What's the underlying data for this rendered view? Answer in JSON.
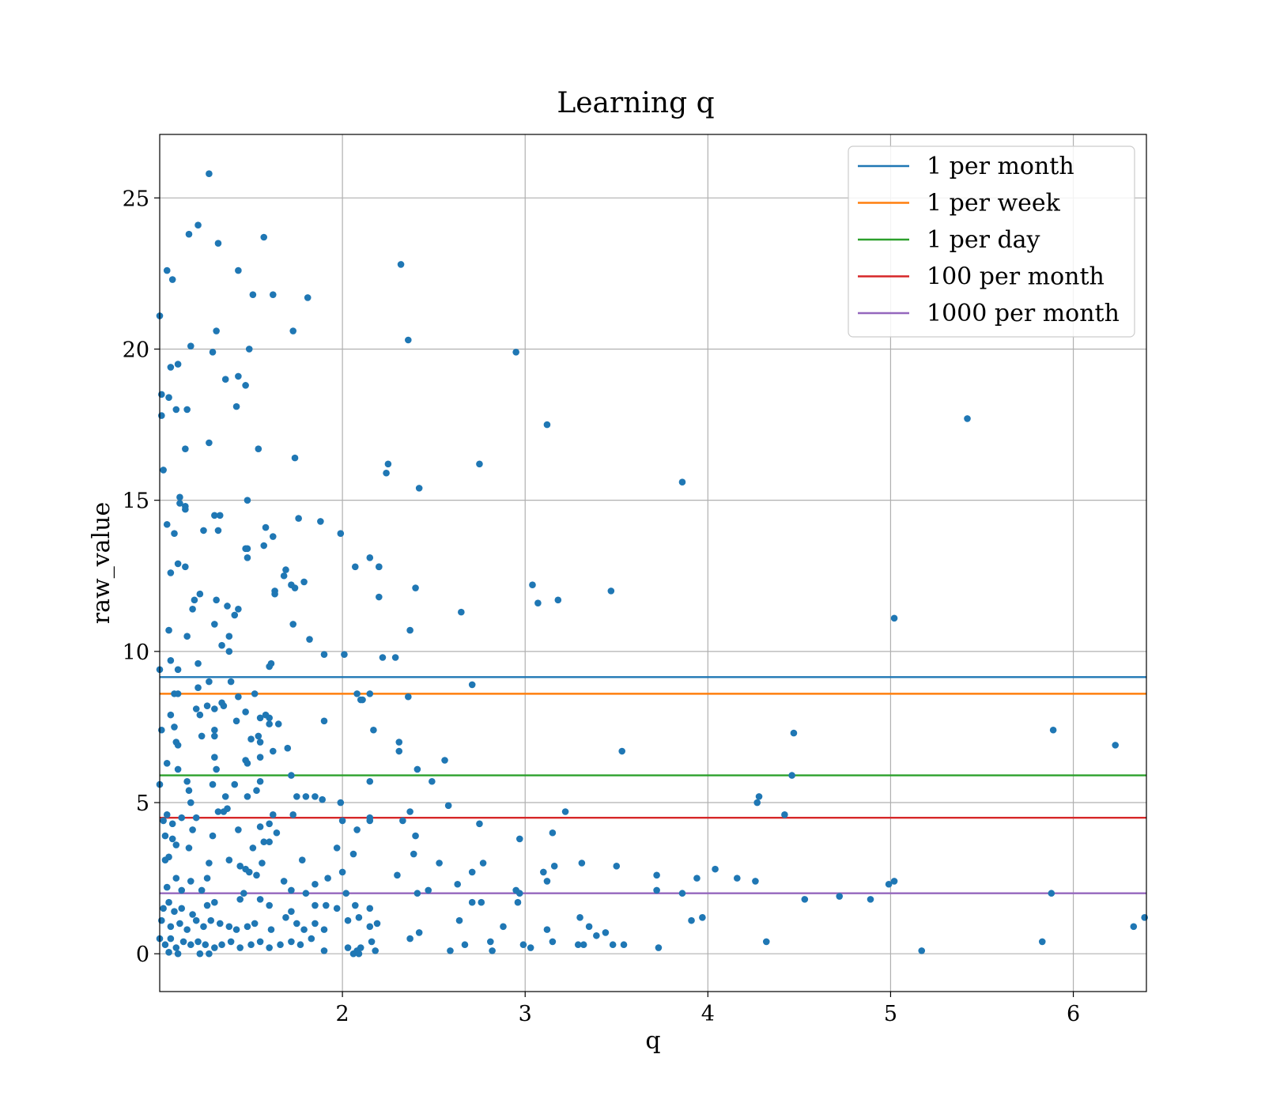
{
  "chart_data": {
    "type": "scatter",
    "title": "Learning q",
    "xlabel": "q",
    "ylabel": "raw_value",
    "xlim": [
      1.0,
      6.4
    ],
    "ylim": [
      -1.25,
      27.1
    ],
    "xticks": [
      2,
      3,
      4,
      5,
      6
    ],
    "yticks": [
      0,
      5,
      10,
      15,
      20,
      25
    ],
    "grid": true,
    "legend_position": "top-right",
    "point_color": "#1f77b4",
    "points": [
      [
        1.27,
        25.8
      ],
      [
        1.21,
        24.1
      ],
      [
        1.16,
        23.8
      ],
      [
        1.32,
        23.5
      ],
      [
        1.57,
        23.7
      ],
      [
        1.04,
        22.6
      ],
      [
        1.07,
        22.3
      ],
      [
        1.43,
        22.6
      ],
      [
        1.51,
        21.8
      ],
      [
        1.62,
        21.8
      ],
      [
        1.81,
        21.7
      ],
      [
        2.32,
        22.8
      ],
      [
        1.0,
        21.1
      ],
      [
        1.17,
        20.1
      ],
      [
        1.29,
        19.9
      ],
      [
        1.31,
        20.6
      ],
      [
        1.49,
        20.0
      ],
      [
        1.73,
        20.6
      ],
      [
        2.36,
        20.3
      ],
      [
        2.95,
        19.9
      ],
      [
        1.06,
        19.4
      ],
      [
        1.1,
        19.5
      ],
      [
        1.36,
        19.0
      ],
      [
        1.43,
        19.1
      ],
      [
        1.47,
        18.8
      ],
      [
        1.01,
        18.5
      ],
      [
        1.05,
        18.4
      ],
      [
        1.09,
        18.0
      ],
      [
        1.42,
        18.1
      ],
      [
        1.01,
        17.8
      ],
      [
        1.15,
        18.0
      ],
      [
        3.12,
        17.5
      ],
      [
        5.42,
        17.7
      ],
      [
        1.27,
        16.9
      ],
      [
        1.14,
        16.7
      ],
      [
        1.54,
        16.7
      ],
      [
        1.74,
        16.4
      ],
      [
        1.02,
        16.0
      ],
      [
        2.24,
        15.9
      ],
      [
        2.25,
        16.2
      ],
      [
        2.75,
        16.2
      ],
      [
        2.42,
        15.4
      ],
      [
        3.86,
        15.6
      ],
      [
        1.11,
        15.1
      ],
      [
        1.48,
        15.0
      ],
      [
        1.11,
        14.9
      ],
      [
        1.14,
        14.8
      ],
      [
        1.14,
        14.7
      ],
      [
        1.3,
        14.5
      ],
      [
        1.33,
        14.5
      ],
      [
        1.04,
        14.2
      ],
      [
        1.32,
        14.0
      ],
      [
        1.24,
        14.0
      ],
      [
        1.58,
        14.1
      ],
      [
        1.08,
        13.9
      ],
      [
        1.62,
        13.8
      ],
      [
        1.99,
        13.9
      ],
      [
        1.57,
        13.5
      ],
      [
        1.47,
        13.4
      ],
      [
        1.48,
        13.4
      ],
      [
        1.48,
        13.1
      ],
      [
        1.76,
        14.4
      ],
      [
        1.88,
        14.3
      ],
      [
        1.1,
        12.9
      ],
      [
        1.14,
        12.8
      ],
      [
        1.06,
        12.6
      ],
      [
        1.69,
        12.7
      ],
      [
        2.15,
        13.1
      ],
      [
        2.2,
        12.8
      ],
      [
        2.2,
        12.8
      ],
      [
        2.07,
        12.8
      ],
      [
        1.68,
        12.5
      ],
      [
        1.72,
        12.2
      ],
      [
        1.79,
        12.3
      ],
      [
        1.74,
        12.1
      ],
      [
        1.63,
        12.0
      ],
      [
        1.63,
        11.9
      ],
      [
        1.22,
        11.9
      ],
      [
        2.4,
        12.1
      ],
      [
        3.04,
        12.2
      ],
      [
        3.47,
        12.0
      ],
      [
        1.19,
        11.7
      ],
      [
        1.31,
        11.7
      ],
      [
        1.18,
        11.4
      ],
      [
        1.37,
        11.5
      ],
      [
        1.43,
        11.4
      ],
      [
        1.41,
        11.2
      ],
      [
        2.2,
        11.8
      ],
      [
        3.07,
        11.6
      ],
      [
        3.18,
        11.7
      ],
      [
        2.65,
        11.3
      ],
      [
        1.73,
        10.9
      ],
      [
        1.3,
        10.9
      ],
      [
        1.05,
        10.7
      ],
      [
        1.38,
        10.5
      ],
      [
        1.15,
        10.5
      ],
      [
        2.37,
        10.7
      ],
      [
        5.02,
        11.1
      ],
      [
        1.82,
        10.4
      ],
      [
        1.34,
        10.2
      ],
      [
        1.38,
        10.0
      ],
      [
        1.9,
        9.9
      ],
      [
        2.01,
        9.9
      ],
      [
        2.22,
        9.8
      ],
      [
        2.29,
        9.8
      ],
      [
        1.06,
        9.7
      ],
      [
        1.21,
        9.6
      ],
      [
        1.6,
        9.5
      ],
      [
        1.61,
        9.6
      ],
      [
        1.0,
        9.4
      ],
      [
        1.1,
        9.4
      ],
      [
        1.27,
        9.0
      ],
      [
        1.39,
        9.0
      ],
      [
        1.21,
        8.8
      ],
      [
        2.71,
        8.9
      ],
      [
        1.08,
        8.6
      ],
      [
        1.1,
        8.6
      ],
      [
        1.43,
        8.5
      ],
      [
        1.52,
        8.6
      ],
      [
        2.08,
        8.6
      ],
      [
        2.15,
        8.6
      ],
      [
        2.36,
        8.5
      ],
      [
        2.1,
        8.4
      ],
      [
        2.11,
        8.4
      ],
      [
        1.34,
        8.3
      ],
      [
        1.26,
        8.2
      ],
      [
        1.3,
        8.1
      ],
      [
        1.35,
        8.2
      ],
      [
        1.47,
        8.0
      ],
      [
        1.2,
        8.1
      ],
      [
        1.22,
        7.9
      ],
      [
        1.06,
        7.9
      ],
      [
        1.55,
        7.8
      ],
      [
        1.58,
        7.9
      ],
      [
        1.6,
        7.8
      ],
      [
        1.42,
        7.7
      ],
      [
        1.65,
        7.6
      ],
      [
        1.6,
        7.6
      ],
      [
        1.9,
        7.7
      ],
      [
        1.08,
        7.5
      ],
      [
        1.01,
        7.4
      ],
      [
        1.3,
        7.4
      ],
      [
        1.23,
        7.2
      ],
      [
        1.3,
        7.2
      ],
      [
        1.54,
        7.2
      ],
      [
        1.5,
        7.1
      ],
      [
        1.55,
        7.0
      ],
      [
        2.17,
        7.4
      ],
      [
        2.31,
        7.0
      ],
      [
        2.31,
        6.7
      ],
      [
        1.09,
        7.0
      ],
      [
        1.1,
        6.9
      ],
      [
        1.62,
        6.7
      ],
      [
        1.7,
        6.8
      ],
      [
        3.53,
        6.7
      ],
      [
        4.47,
        7.3
      ],
      [
        5.89,
        7.4
      ],
      [
        6.23,
        6.9
      ],
      [
        1.04,
        6.3
      ],
      [
        1.3,
        6.5
      ],
      [
        1.55,
        6.5
      ],
      [
        1.47,
        6.4
      ],
      [
        1.48,
        6.3
      ],
      [
        1.31,
        6.1
      ],
      [
        2.41,
        6.1
      ],
      [
        2.56,
        6.4
      ],
      [
        1.1,
        6.1
      ],
      [
        1.72,
        5.9
      ],
      [
        4.46,
        5.9
      ],
      [
        1.15,
        5.7
      ],
      [
        1.29,
        5.6
      ],
      [
        1.41,
        5.6
      ],
      [
        1.55,
        5.7
      ],
      [
        2.15,
        5.7
      ],
      [
        2.49,
        5.7
      ],
      [
        1.0,
        5.6
      ],
      [
        1.16,
        5.4
      ],
      [
        1.53,
        5.4
      ],
      [
        1.36,
        5.2
      ],
      [
        1.48,
        5.2
      ],
      [
        1.75,
        5.2
      ],
      [
        1.8,
        5.2
      ],
      [
        1.85,
        5.2
      ],
      [
        1.89,
        5.1
      ],
      [
        1.17,
        5.0
      ],
      [
        1.99,
        5.0
      ],
      [
        2.58,
        4.9
      ],
      [
        4.27,
        5.0
      ],
      [
        4.28,
        5.2
      ],
      [
        1.04,
        4.6
      ],
      [
        1.12,
        4.5
      ],
      [
        1.2,
        4.5
      ],
      [
        1.32,
        4.7
      ],
      [
        1.35,
        4.7
      ],
      [
        1.37,
        4.8
      ],
      [
        1.62,
        4.6
      ],
      [
        1.73,
        4.6
      ],
      [
        2.15,
        4.5
      ],
      [
        2.15,
        4.4
      ],
      [
        2.37,
        4.7
      ],
      [
        3.22,
        4.7
      ],
      [
        4.42,
        4.6
      ],
      [
        1.02,
        4.4
      ],
      [
        1.07,
        4.3
      ],
      [
        1.55,
        4.2
      ],
      [
        1.6,
        4.3
      ],
      [
        2.0,
        4.4
      ],
      [
        2.33,
        4.4
      ],
      [
        2.75,
        4.3
      ],
      [
        1.18,
        4.1
      ],
      [
        1.43,
        4.1
      ],
      [
        1.29,
        3.9
      ],
      [
        1.64,
        4.0
      ],
      [
        2.08,
        4.1
      ],
      [
        2.4,
        3.9
      ],
      [
        3.15,
        4.0
      ],
      [
        1.03,
        3.9
      ],
      [
        1.07,
        3.8
      ],
      [
        1.09,
        3.6
      ],
      [
        1.16,
        3.5
      ],
      [
        1.57,
        3.7
      ],
      [
        1.6,
        3.7
      ],
      [
        2.97,
        3.8
      ],
      [
        1.51,
        3.5
      ],
      [
        1.97,
        3.5
      ],
      [
        2.06,
        3.3
      ],
      [
        2.39,
        3.3
      ],
      [
        1.05,
        3.2
      ],
      [
        1.03,
        3.1
      ],
      [
        1.38,
        3.1
      ],
      [
        1.78,
        3.1
      ],
      [
        1.47,
        2.8
      ],
      [
        1.27,
        3.0
      ],
      [
        1.44,
        2.9
      ],
      [
        1.56,
        3.0
      ],
      [
        2.53,
        3.0
      ],
      [
        2.77,
        3.0
      ],
      [
        3.16,
        2.9
      ],
      [
        3.31,
        3.0
      ],
      [
        3.5,
        2.9
      ],
      [
        4.04,
        2.8
      ],
      [
        1.09,
        2.5
      ],
      [
        1.17,
        2.4
      ],
      [
        1.26,
        2.5
      ],
      [
        1.49,
        2.7
      ],
      [
        1.53,
        2.6
      ],
      [
        1.68,
        2.4
      ],
      [
        1.85,
        2.3
      ],
      [
        1.92,
        2.5
      ],
      [
        2.0,
        2.7
      ],
      [
        2.3,
        2.6
      ],
      [
        2.63,
        2.3
      ],
      [
        2.71,
        2.7
      ],
      [
        3.1,
        2.7
      ],
      [
        3.12,
        2.4
      ],
      [
        3.72,
        2.6
      ],
      [
        3.94,
        2.5
      ],
      [
        4.16,
        2.5
      ],
      [
        4.26,
        2.4
      ],
      [
        4.99,
        2.3
      ],
      [
        5.02,
        2.4
      ],
      [
        1.04,
        2.2
      ],
      [
        1.12,
        2.1
      ],
      [
        1.23,
        2.1
      ],
      [
        1.46,
        2.0
      ],
      [
        1.72,
        2.1
      ],
      [
        1.8,
        2.0
      ],
      [
        2.02,
        2.0
      ],
      [
        2.41,
        2.0
      ],
      [
        2.47,
        2.1
      ],
      [
        2.95,
        2.1
      ],
      [
        2.97,
        2.0
      ],
      [
        3.72,
        2.1
      ],
      [
        3.86,
        2.0
      ],
      [
        4.72,
        1.9
      ],
      [
        5.88,
        2.0
      ],
      [
        4.53,
        1.8
      ],
      [
        4.89,
        1.8
      ],
      [
        1.02,
        1.5
      ],
      [
        1.05,
        1.7
      ],
      [
        1.08,
        1.4
      ],
      [
        1.12,
        1.5
      ],
      [
        1.18,
        1.3
      ],
      [
        1.26,
        1.6
      ],
      [
        1.3,
        1.7
      ],
      [
        1.44,
        1.8
      ],
      [
        1.55,
        1.8
      ],
      [
        1.6,
        1.6
      ],
      [
        1.72,
        1.4
      ],
      [
        1.85,
        1.6
      ],
      [
        1.91,
        1.6
      ],
      [
        1.97,
        1.5
      ],
      [
        2.07,
        1.6
      ],
      [
        2.15,
        1.5
      ],
      [
        2.76,
        1.7
      ],
      [
        2.96,
        1.7
      ],
      [
        2.71,
        1.7
      ],
      [
        1.01,
        1.1
      ],
      [
        1.06,
        0.9
      ],
      [
        1.11,
        1.0
      ],
      [
        1.15,
        0.8
      ],
      [
        1.2,
        1.1
      ],
      [
        1.24,
        0.9
      ],
      [
        1.28,
        1.1
      ],
      [
        1.33,
        1.0
      ],
      [
        1.38,
        0.9
      ],
      [
        1.42,
        0.8
      ],
      [
        1.48,
        0.9
      ],
      [
        1.52,
        1.0
      ],
      [
        1.61,
        0.8
      ],
      [
        1.69,
        1.2
      ],
      [
        1.75,
        1.0
      ],
      [
        1.79,
        0.8
      ],
      [
        1.85,
        1.0
      ],
      [
        1.9,
        0.8
      ],
      [
        2.03,
        1.1
      ],
      [
        2.09,
        1.2
      ],
      [
        2.15,
        0.9
      ],
      [
        2.19,
        1.0
      ],
      [
        2.64,
        1.1
      ],
      [
        2.88,
        0.9
      ],
      [
        3.12,
        0.8
      ],
      [
        3.3,
        1.2
      ],
      [
        3.35,
        0.9
      ],
      [
        3.44,
        0.7
      ],
      [
        3.97,
        1.2
      ],
      [
        3.91,
        1.1
      ],
      [
        6.33,
        0.9
      ],
      [
        6.39,
        1.2
      ],
      [
        1.0,
        0.5
      ],
      [
        1.03,
        0.3
      ],
      [
        1.06,
        0.5
      ],
      [
        1.09,
        0.2
      ],
      [
        1.13,
        0.4
      ],
      [
        1.17,
        0.3
      ],
      [
        1.21,
        0.4
      ],
      [
        1.25,
        0.3
      ],
      [
        1.3,
        0.2
      ],
      [
        1.34,
        0.3
      ],
      [
        1.39,
        0.4
      ],
      [
        1.44,
        0.2
      ],
      [
        1.5,
        0.3
      ],
      [
        1.55,
        0.4
      ],
      [
        1.6,
        0.2
      ],
      [
        1.66,
        0.3
      ],
      [
        1.72,
        0.4
      ],
      [
        1.77,
        0.3
      ],
      [
        1.83,
        0.5
      ],
      [
        1.9,
        0.1
      ],
      [
        2.03,
        0.2
      ],
      [
        2.08,
        0.1
      ],
      [
        2.1,
        0.2
      ],
      [
        2.16,
        0.4
      ],
      [
        2.18,
        0.1
      ],
      [
        2.37,
        0.5
      ],
      [
        2.42,
        0.7
      ],
      [
        2.59,
        0.1
      ],
      [
        2.67,
        0.3
      ],
      [
        2.81,
        0.4
      ],
      [
        2.82,
        0.1
      ],
      [
        2.99,
        0.3
      ],
      [
        3.03,
        0.2
      ],
      [
        3.15,
        0.4
      ],
      [
        3.29,
        0.3
      ],
      [
        3.32,
        0.3
      ],
      [
        3.39,
        0.6
      ],
      [
        3.48,
        0.3
      ],
      [
        3.54,
        0.3
      ],
      [
        3.73,
        0.2
      ],
      [
        4.32,
        0.4
      ],
      [
        5.17,
        0.1
      ],
      [
        5.83,
        0.4
      ],
      [
        1.05,
        0.05
      ],
      [
        1.1,
        0.0
      ],
      [
        1.22,
        0.0
      ],
      [
        1.27,
        0.0
      ],
      [
        2.06,
        0.0
      ],
      [
        2.09,
        0.0
      ]
    ],
    "hlines": [
      {
        "name": "1 per month",
        "y": 9.15,
        "color": "#1f77b4"
      },
      {
        "name": "1 per week",
        "y": 8.6,
        "color": "#ff7f0e"
      },
      {
        "name": "1 per day",
        "y": 5.9,
        "color": "#2ca02c"
      },
      {
        "name": "100 per month",
        "y": 4.5,
        "color": "#d62728"
      },
      {
        "name": "1000 per month",
        "y": 2.0,
        "color": "#9467bd"
      }
    ]
  }
}
